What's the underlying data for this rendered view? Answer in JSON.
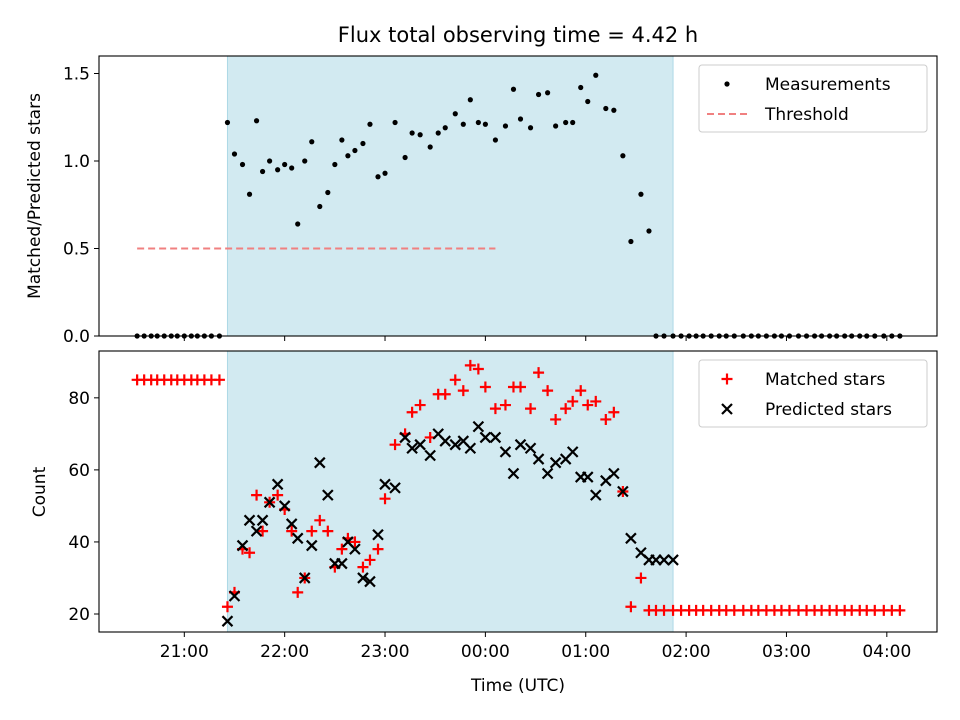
{
  "chart_data": [
    {
      "type": "scatter",
      "title": "Flux total observing time = 4.42 h",
      "xlabel": "",
      "ylabel": "Matched/Predicted stars",
      "x_unit": "hours after 20:00 UTC",
      "xlim": [
        0.15,
        8.5
      ],
      "ylim": [
        0,
        1.6
      ],
      "yticks": [
        "0.0",
        "0.5",
        "1.0",
        "1.5"
      ],
      "yticks_values": [
        0,
        0.5,
        1.0,
        1.5
      ],
      "shaded_span": [
        1.43,
        5.87
      ],
      "shade_color": "#add8e6",
      "legend_position": "top-right",
      "legend": [
        "Measurements",
        "Threshold"
      ],
      "series": [
        {
          "name": "Threshold",
          "style": "dashed-line",
          "color": "#f08080",
          "x": [
            0.53,
            4.1
          ],
          "y": [
            0.5,
            0.5
          ]
        },
        {
          "name": "Measurements",
          "style": "dot",
          "color": "#000000",
          "x": [
            0.53,
            0.6,
            0.67,
            0.73,
            0.8,
            0.87,
            0.93,
            1.0,
            1.07,
            1.13,
            1.2,
            1.27,
            1.35,
            1.43,
            1.5,
            1.58,
            1.65,
            1.72,
            1.78,
            1.85,
            1.93,
            2.0,
            2.07,
            2.13,
            2.2,
            2.27,
            2.35,
            2.43,
            2.5,
            2.57,
            2.63,
            2.7,
            2.78,
            2.85,
            2.93,
            3.0,
            3.1,
            3.2,
            3.27,
            3.35,
            3.45,
            3.53,
            3.6,
            3.7,
            3.78,
            3.85,
            3.93,
            4.0,
            4.1,
            4.2,
            4.28,
            4.35,
            4.45,
            4.53,
            4.62,
            4.7,
            4.8,
            4.87,
            4.95,
            5.02,
            5.1,
            5.2,
            5.28,
            5.37,
            5.45,
            5.55,
            5.63,
            5.7,
            5.78,
            5.87,
            5.95,
            6.03,
            6.1,
            6.17,
            6.25,
            6.33,
            6.4,
            6.48,
            6.57,
            6.65,
            6.72,
            6.8,
            6.88,
            6.95,
            7.03,
            7.12,
            7.2,
            7.28,
            7.35,
            7.43,
            7.5,
            7.58,
            7.65,
            7.73,
            7.8,
            7.88,
            7.97,
            8.05,
            8.13
          ],
          "y": [
            0,
            0,
            0,
            0,
            0,
            0,
            0,
            0,
            0,
            0,
            0,
            0,
            0,
            1.22,
            1.04,
            0.98,
            0.81,
            1.23,
            0.94,
            1.0,
            0.95,
            0.98,
            0.96,
            0.64,
            1.0,
            1.11,
            0.74,
            0.82,
            0.98,
            1.12,
            1.03,
            1.06,
            1.1,
            1.21,
            0.91,
            0.93,
            1.22,
            1.02,
            1.16,
            1.15,
            1.08,
            1.16,
            1.19,
            1.27,
            1.21,
            1.35,
            1.22,
            1.21,
            1.12,
            1.2,
            1.41,
            1.24,
            1.19,
            1.38,
            1.39,
            1.2,
            1.22,
            1.22,
            1.42,
            1.34,
            1.49,
            1.3,
            1.29,
            1.03,
            0.54,
            0.81,
            0.6,
            0,
            0,
            0,
            0,
            0,
            0,
            0,
            0,
            0,
            0,
            0,
            0,
            0,
            0,
            0,
            0,
            0,
            0,
            0,
            0,
            0,
            0,
            0,
            0,
            0,
            0,
            0,
            0,
            0,
            0,
            0,
            0
          ]
        }
      ]
    },
    {
      "type": "scatter",
      "title": "",
      "xlabel": "Time (UTC)",
      "ylabel": "Count",
      "x_unit": "hours after 20:00 UTC",
      "xlim": [
        0.15,
        8.5
      ],
      "ylim": [
        15,
        93
      ],
      "yticks": [
        "20",
        "40",
        "60",
        "80"
      ],
      "yticks_values": [
        20,
        40,
        60,
        80
      ],
      "xticks": [
        "21:00",
        "22:00",
        "23:00",
        "00:00",
        "01:00",
        "02:00",
        "03:00",
        "04:00"
      ],
      "xticks_values": [
        1,
        2,
        3,
        4,
        5,
        6,
        7,
        8
      ],
      "shaded_span": [
        1.43,
        5.87
      ],
      "shade_color": "#add8e6",
      "legend_position": "top-right",
      "legend": [
        "Matched stars",
        "Predicted stars"
      ],
      "series": [
        {
          "name": "Matched stars",
          "marker": "+",
          "color": "#ff0000",
          "x": [
            0.53,
            0.6,
            0.67,
            0.73,
            0.8,
            0.87,
            0.93,
            1.0,
            1.07,
            1.13,
            1.2,
            1.27,
            1.35,
            1.43,
            1.5,
            1.58,
            1.65,
            1.72,
            1.78,
            1.85,
            1.93,
            2.0,
            2.07,
            2.13,
            2.2,
            2.27,
            2.35,
            2.43,
            2.5,
            2.57,
            2.63,
            2.7,
            2.78,
            2.85,
            2.93,
            3.0,
            3.1,
            3.2,
            3.27,
            3.35,
            3.45,
            3.53,
            3.6,
            3.7,
            3.78,
            3.85,
            3.93,
            4.0,
            4.1,
            4.2,
            4.28,
            4.35,
            4.45,
            4.53,
            4.62,
            4.7,
            4.8,
            4.87,
            4.95,
            5.02,
            5.1,
            5.2,
            5.28,
            5.37,
            5.45,
            5.55,
            5.63,
            5.7,
            5.78,
            5.87,
            5.95,
            6.03,
            6.1,
            6.17,
            6.25,
            6.33,
            6.4,
            6.48,
            6.57,
            6.65,
            6.72,
            6.8,
            6.88,
            6.95,
            7.03,
            7.12,
            7.2,
            7.28,
            7.35,
            7.43,
            7.5,
            7.58,
            7.65,
            7.73,
            7.8,
            7.88,
            7.97,
            8.05,
            8.13
          ],
          "y": [
            85,
            85,
            85,
            85,
            85,
            85,
            85,
            85,
            85,
            85,
            85,
            85,
            85,
            22,
            26,
            38,
            37,
            53,
            43,
            51,
            53,
            49,
            43,
            26,
            30,
            43,
            46,
            43,
            33,
            38,
            41,
            40,
            33,
            35,
            38,
            52,
            67,
            70,
            76,
            78,
            69,
            81,
            81,
            85,
            82,
            89,
            88,
            83,
            77,
            78,
            83,
            83,
            77,
            87,
            82,
            74,
            77,
            79,
            82,
            78,
            79,
            74,
            76,
            54,
            22,
            30,
            21,
            21,
            21,
            21,
            21,
            21,
            21,
            21,
            21,
            21,
            21,
            21,
            21,
            21,
            21,
            21,
            21,
            21,
            21,
            21,
            21,
            21,
            21,
            21,
            21,
            21,
            21,
            21,
            21,
            21,
            21,
            21,
            21
          ]
        },
        {
          "name": "Predicted stars",
          "marker": "x",
          "color": "#000000",
          "x": [
            1.43,
            1.5,
            1.58,
            1.65,
            1.72,
            1.78,
            1.85,
            1.93,
            2.0,
            2.07,
            2.13,
            2.2,
            2.27,
            2.35,
            2.43,
            2.5,
            2.57,
            2.63,
            2.7,
            2.78,
            2.85,
            2.93,
            3.0,
            3.1,
            3.2,
            3.27,
            3.35,
            3.45,
            3.53,
            3.6,
            3.7,
            3.78,
            3.85,
            3.93,
            4.0,
            4.1,
            4.2,
            4.28,
            4.35,
            4.45,
            4.53,
            4.62,
            4.7,
            4.8,
            4.87,
            4.95,
            5.02,
            5.1,
            5.2,
            5.28,
            5.37,
            5.45,
            5.55,
            5.63,
            5.7,
            5.78,
            5.87
          ],
          "y": [
            18,
            25,
            39,
            46,
            43,
            46,
            51,
            56,
            50,
            45,
            41,
            30,
            39,
            62,
            53,
            34,
            34,
            40,
            38,
            30,
            29,
            42,
            56,
            55,
            69,
            66,
            67,
            64,
            70,
            68,
            67,
            68,
            66,
            72,
            69,
            69,
            65,
            59,
            67,
            66,
            63,
            59,
            62,
            63,
            65,
            58,
            58,
            53,
            57,
            59,
            54,
            41,
            37,
            35,
            35,
            35,
            35
          ]
        }
      ]
    }
  ]
}
